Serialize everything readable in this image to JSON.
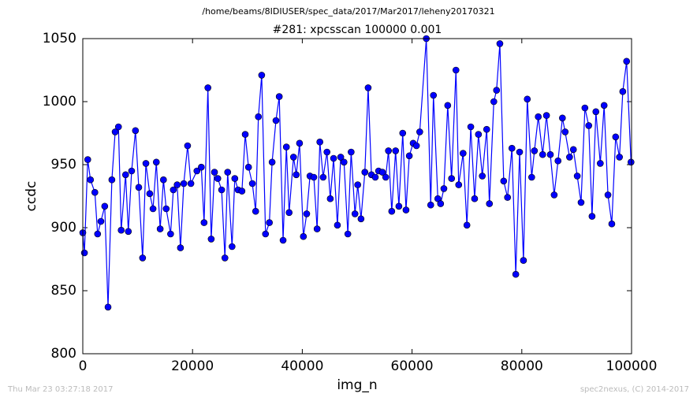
{
  "chart_data": {
    "type": "line",
    "suptitle": "/home/beams/8IDIUSER/spec_data/2017/Mar2017/leheny20170321",
    "title": "#281: xpcsscan 100000 0.001",
    "xlabel": "img_n",
    "ylabel": "ccdc",
    "color": "#0000ff",
    "x": [
      0,
      300,
      900,
      1400,
      2200,
      2700,
      3300,
      4000,
      4600,
      5300,
      5900,
      6500,
      7000,
      7800,
      8300,
      8900,
      9600,
      10200,
      10900,
      11500,
      12200,
      12800,
      13400,
      14100,
      14700,
      15200,
      16000,
      16500,
      17200,
      17800,
      18400,
      19100,
      19700,
      20800,
      21600,
      22100,
      22800,
      23400,
      24000,
      24600,
      25300,
      25900,
      26400,
      27200,
      27700,
      28300,
      29000,
      29600,
      30200,
      30900,
      31500,
      32000,
      32600,
      33300,
      34000,
      34500,
      35200,
      35800,
      36500,
      37100,
      37600,
      38400,
      38900,
      39500,
      40200,
      40800,
      41400,
      42100,
      42700,
      43200,
      43800,
      44500,
      45100,
      45700,
      46400,
      47000,
      47600,
      48300,
      48900,
      49600,
      50100,
      50700,
      51400,
      52000,
      52600,
      53300,
      53900,
      54600,
      55200,
      55700,
      56300,
      57000,
      57600,
      58300,
      58900,
      59500,
      60200,
      60800,
      61400,
      62600,
      63400,
      63900,
      64700,
      65200,
      65800,
      66500,
      67200,
      68000,
      68500,
      69300,
      70000,
      70700,
      71400,
      72100,
      72800,
      73600,
      74100,
      74900,
      75400,
      76000,
      76700,
      77400,
      78200,
      78900,
      79600,
      80300,
      81000,
      81800,
      82300,
      83000,
      83800,
      84500,
      85200,
      85900,
      86600,
      87400,
      87900,
      88700,
      89400,
      90100,
      90800,
      91500,
      92200,
      92800,
      93500,
      94300,
      95000,
      95700,
      96400,
      97100,
      97800,
      98400,
      99100,
      99900
    ],
    "values": [
      896,
      880,
      954,
      938,
      928,
      895,
      905,
      917,
      837,
      938,
      976,
      980,
      898,
      942,
      897,
      945,
      977,
      932,
      876,
      951,
      927,
      915,
      952,
      899,
      938,
      915,
      895,
      930,
      934,
      884,
      935,
      965,
      935,
      945,
      948,
      904,
      1011,
      891,
      944,
      939,
      930,
      876,
      944,
      885,
      939,
      930,
      929,
      974,
      948,
      935,
      913,
      988,
      1021,
      895,
      904,
      952,
      985,
      1004,
      890,
      964,
      912,
      956,
      942,
      967,
      893,
      911,
      941,
      940,
      899,
      968,
      940,
      960,
      923,
      955,
      902,
      956,
      952,
      895,
      960,
      911,
      934,
      907,
      944,
      1011,
      942,
      940,
      945,
      944,
      940,
      961,
      913,
      961,
      917,
      975,
      914,
      957,
      967,
      965,
      976,
      1050,
      918,
      1005,
      923,
      919,
      931,
      997,
      939,
      1025,
      934,
      959,
      902,
      980,
      923,
      974,
      941,
      978,
      919,
      1000,
      1009,
      1046,
      937,
      924,
      963,
      863,
      960,
      874,
      1002,
      940,
      961,
      988,
      958,
      989,
      958,
      926,
      953,
      987,
      976,
      956,
      962,
      941,
      920,
      995,
      981,
      909,
      992,
      951,
      997,
      926,
      903,
      972,
      956,
      1008,
      1032,
      952
    ],
    "xlim": [
      0,
      100000
    ],
    "xticks": [
      0,
      20000,
      40000,
      60000,
      80000,
      100000
    ],
    "ylim": [
      800,
      1050
    ],
    "yticks": [
      800,
      850,
      900,
      950,
      1000,
      1050
    ]
  },
  "footer": {
    "timestamp": "Thu Mar 23 03:27:18 2017",
    "credit": "spec2nexus, (C) 2014-2017"
  }
}
